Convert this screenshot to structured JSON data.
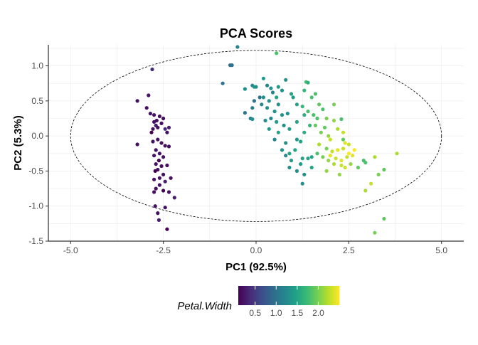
{
  "chart_data": {
    "type": "scatter",
    "title": "PCA Scores",
    "xlabel": "PC1 (92.5%)",
    "ylabel": "PC2 (5.3%)",
    "xlim": [
      -5.6,
      5.6
    ],
    "ylim": [
      -1.5,
      1.3
    ],
    "x_ticks": [
      -5.0,
      -2.5,
      0.0,
      2.5,
      5.0
    ],
    "x_tick_labels": [
      "-5.0",
      "-2.5",
      "0.0",
      "2.5",
      "5.0"
    ],
    "y_ticks": [
      -1.5,
      -1.0,
      -0.5,
      0.0,
      0.5,
      1.0
    ],
    "y_tick_labels": [
      "-1.5",
      "-1.0",
      "-0.5",
      "0.0",
      "0.5",
      "1.0"
    ],
    "grid": true,
    "legend_position": "bottom",
    "color_variable": "Petal.Width",
    "colorbar": {
      "title": "Petal.Width",
      "range": [
        0.1,
        2.5
      ],
      "ticks": [
        0.5,
        1.0,
        1.5,
        2.0
      ],
      "tick_labels": [
        "0.5",
        "1.0",
        "1.5",
        "2.0"
      ],
      "colors": [
        "#440154",
        "#482878",
        "#3e4a89",
        "#31688e",
        "#26828e",
        "#1f9e89",
        "#35b779",
        "#6ece58",
        "#b5de2b",
        "#fde725"
      ]
    },
    "ellipse": {
      "center": [
        0,
        0
      ],
      "semi_axis_x": 5.0,
      "semi_axis_y": 1.22
    },
    "points": [
      {
        "x": -3.2,
        "y": 0.5,
        "c": 0.2
      },
      {
        "x": -3.2,
        "y": -0.12,
        "c": 0.2
      },
      {
        "x": -2.95,
        "y": 0.4,
        "c": 0.2
      },
      {
        "x": -2.85,
        "y": 0.32,
        "c": 0.2
      },
      {
        "x": -2.9,
        "y": 0.58,
        "c": 0.2
      },
      {
        "x": -2.8,
        "y": 0.95,
        "c": 0.4
      },
      {
        "x": -2.75,
        "y": 0.3,
        "c": 0.2
      },
      {
        "x": -2.75,
        "y": 0.2,
        "c": 0.2
      },
      {
        "x": -2.78,
        "y": 0.1,
        "c": 0.2
      },
      {
        "x": -2.82,
        "y": 0.05,
        "c": 0.1
      },
      {
        "x": -2.68,
        "y": 0.22,
        "c": 0.2
      },
      {
        "x": -2.7,
        "y": 0.15,
        "c": 0.3
      },
      {
        "x": -2.65,
        "y": 0.12,
        "c": 0.2
      },
      {
        "x": -2.6,
        "y": 0.28,
        "c": 0.2
      },
      {
        "x": -2.55,
        "y": 0.18,
        "c": 0.2
      },
      {
        "x": -2.5,
        "y": 0.25,
        "c": 0.2
      },
      {
        "x": -2.45,
        "y": 0.1,
        "c": 0.4
      },
      {
        "x": -2.4,
        "y": 0.05,
        "c": 0.2
      },
      {
        "x": -2.35,
        "y": 0.12,
        "c": 0.3
      },
      {
        "x": -2.78,
        "y": -0.08,
        "c": 0.2
      },
      {
        "x": -2.65,
        "y": -0.05,
        "c": 0.2
      },
      {
        "x": -2.55,
        "y": -0.1,
        "c": 0.2
      },
      {
        "x": -2.45,
        "y": -0.14,
        "c": 0.2
      },
      {
        "x": -2.35,
        "y": -0.15,
        "c": 0.2
      },
      {
        "x": -2.7,
        "y": -0.2,
        "c": 0.2
      },
      {
        "x": -2.6,
        "y": -0.25,
        "c": 0.2
      },
      {
        "x": -2.75,
        "y": -0.28,
        "c": 0.2
      },
      {
        "x": -2.5,
        "y": -0.3,
        "c": 0.2
      },
      {
        "x": -2.62,
        "y": -0.35,
        "c": 0.1
      },
      {
        "x": -2.7,
        "y": -0.4,
        "c": 0.2
      },
      {
        "x": -2.55,
        "y": -0.43,
        "c": 0.2
      },
      {
        "x": -2.4,
        "y": -0.42,
        "c": 0.2
      },
      {
        "x": -2.65,
        "y": -0.48,
        "c": 0.2
      },
      {
        "x": -2.72,
        "y": -0.5,
        "c": 0.1
      },
      {
        "x": -2.5,
        "y": -0.55,
        "c": 0.2
      },
      {
        "x": -2.6,
        "y": -0.6,
        "c": 0.2
      },
      {
        "x": -2.75,
        "y": -0.62,
        "c": 0.2
      },
      {
        "x": -2.45,
        "y": -0.65,
        "c": 0.3
      },
      {
        "x": -2.3,
        "y": -0.6,
        "c": 0.2
      },
      {
        "x": -2.6,
        "y": -0.7,
        "c": 0.2
      },
      {
        "x": -2.7,
        "y": -0.75,
        "c": 0.2
      },
      {
        "x": -2.5,
        "y": -0.78,
        "c": 0.1
      },
      {
        "x": -2.35,
        "y": -0.8,
        "c": 0.2
      },
      {
        "x": -2.2,
        "y": -0.88,
        "c": 0.3
      },
      {
        "x": -2.75,
        "y": -0.8,
        "c": 0.2
      },
      {
        "x": -2.72,
        "y": -1.0,
        "c": 0.2
      },
      {
        "x": -2.45,
        "y": -1.02,
        "c": 0.2
      },
      {
        "x": -2.65,
        "y": -1.1,
        "c": 0.2
      },
      {
        "x": -2.62,
        "y": -1.2,
        "c": 0.3
      },
      {
        "x": -2.4,
        "y": -1.33,
        "c": 0.1
      },
      {
        "x": -0.5,
        "y": 1.27,
        "c": 1.2
      },
      {
        "x": -0.7,
        "y": 1.01,
        "c": 1.0
      },
      {
        "x": -0.65,
        "y": 1.01,
        "c": 1.0
      },
      {
        "x": -0.9,
        "y": 0.75,
        "c": 1.0
      },
      {
        "x": -0.3,
        "y": 0.67,
        "c": 1.3
      },
      {
        "x": -0.1,
        "y": 0.72,
        "c": 1.2
      },
      {
        "x": -0.05,
        "y": 0.7,
        "c": 1.4
      },
      {
        "x": 0.0,
        "y": 0.7,
        "c": 1.3
      },
      {
        "x": 0.1,
        "y": 0.55,
        "c": 1.0
      },
      {
        "x": 0.2,
        "y": 0.82,
        "c": 1.4
      },
      {
        "x": 0.3,
        "y": 0.72,
        "c": 1.2
      },
      {
        "x": 0.4,
        "y": 0.68,
        "c": 1.3
      },
      {
        "x": 0.45,
        "y": 0.62,
        "c": 1.2
      },
      {
        "x": 0.55,
        "y": 0.55,
        "c": 1.5
      },
      {
        "x": 0.6,
        "y": 0.7,
        "c": 1.4
      },
      {
        "x": 0.7,
        "y": 0.65,
        "c": 1.3
      },
      {
        "x": 0.8,
        "y": 0.8,
        "c": 1.3
      },
      {
        "x": 0.95,
        "y": 0.6,
        "c": 1.5
      },
      {
        "x": 1.0,
        "y": 0.55,
        "c": 1.4
      },
      {
        "x": 1.1,
        "y": 0.45,
        "c": 1.5
      },
      {
        "x": 0.3,
        "y": 0.4,
        "c": 1.3
      },
      {
        "x": 0.5,
        "y": 0.35,
        "c": 1.3
      },
      {
        "x": 0.6,
        "y": 0.45,
        "c": 1.3
      },
      {
        "x": -0.05,
        "y": 0.5,
        "c": 1.0
      },
      {
        "x": 0.2,
        "y": 0.55,
        "c": 1.3
      },
      {
        "x": 0.35,
        "y": 0.5,
        "c": 1.3
      },
      {
        "x": 0.15,
        "y": 0.45,
        "c": 1.2
      },
      {
        "x": -0.1,
        "y": 0.4,
        "c": 1.1
      },
      {
        "x": -0.3,
        "y": 0.33,
        "c": 1.0
      },
      {
        "x": -0.15,
        "y": 0.25,
        "c": 1.1
      },
      {
        "x": 0.25,
        "y": 0.22,
        "c": 1.3
      },
      {
        "x": 0.4,
        "y": 0.25,
        "c": 1.2
      },
      {
        "x": 0.55,
        "y": 0.2,
        "c": 1.4
      },
      {
        "x": 0.7,
        "y": 0.3,
        "c": 1.3
      },
      {
        "x": 0.85,
        "y": 0.32,
        "c": 1.3
      },
      {
        "x": -0.1,
        "y": 0.24,
        "c": 1.3
      },
      {
        "x": 0.35,
        "y": 0.1,
        "c": 1.4
      },
      {
        "x": 0.6,
        "y": 0.05,
        "c": 1.5
      },
      {
        "x": 0.75,
        "y": 0.15,
        "c": 1.3
      },
      {
        "x": 0.9,
        "y": 0.1,
        "c": 1.4
      },
      {
        "x": 1.1,
        "y": 0.2,
        "c": 1.5
      },
      {
        "x": 1.3,
        "y": 0.05,
        "c": 1.6
      },
      {
        "x": 0.5,
        "y": -0.05,
        "c": 1.2
      },
      {
        "x": 0.8,
        "y": -0.1,
        "c": 1.3
      },
      {
        "x": 0.7,
        "y": -0.2,
        "c": 1.3
      },
      {
        "x": 0.9,
        "y": -0.25,
        "c": 1.5
      },
      {
        "x": 1.1,
        "y": -0.05,
        "c": 1.4
      },
      {
        "x": 1.05,
        "y": -0.2,
        "c": 1.5
      },
      {
        "x": 1.2,
        "y": -0.08,
        "c": 1.5
      },
      {
        "x": 0.9,
        "y": -0.45,
        "c": 1.3
      },
      {
        "x": 1.1,
        "y": -0.5,
        "c": 1.3
      },
      {
        "x": 1.25,
        "y": -0.32,
        "c": 1.5
      },
      {
        "x": 1.5,
        "y": -0.3,
        "c": 1.5
      },
      {
        "x": 1.3,
        "y": -0.55,
        "c": 1.3
      },
      {
        "x": 1.25,
        "y": -0.68,
        "c": 1.3
      },
      {
        "x": 0.95,
        "y": -0.35,
        "c": 1.4
      },
      {
        "x": 1.2,
        "y": -0.4,
        "c": 1.4
      },
      {
        "x": 1.5,
        "y": -0.45,
        "c": 1.5
      },
      {
        "x": 1.4,
        "y": -0.32,
        "c": 1.5
      },
      {
        "x": 0.8,
        "y": -0.28,
        "c": 1.2
      },
      {
        "x": 0.55,
        "y": 1.18,
        "c": 1.8
      },
      {
        "x": 1.3,
        "y": 0.65,
        "c": 1.7
      },
      {
        "x": 1.35,
        "y": 0.77,
        "c": 1.8
      },
      {
        "x": 1.4,
        "y": 0.76,
        "c": 1.6
      },
      {
        "x": 1.5,
        "y": 0.55,
        "c": 1.8
      },
      {
        "x": 1.7,
        "y": 0.45,
        "c": 1.9
      },
      {
        "x": 1.6,
        "y": 0.6,
        "c": 1.8
      },
      {
        "x": 1.25,
        "y": 0.42,
        "c": 1.7
      },
      {
        "x": 1.4,
        "y": 0.35,
        "c": 1.8
      },
      {
        "x": 1.55,
        "y": 0.3,
        "c": 1.8
      },
      {
        "x": 1.3,
        "y": 0.3,
        "c": 1.6
      },
      {
        "x": 1.45,
        "y": 0.15,
        "c": 1.7
      },
      {
        "x": 1.65,
        "y": 0.25,
        "c": 1.8
      },
      {
        "x": 1.6,
        "y": 0.15,
        "c": 1.9
      },
      {
        "x": 1.8,
        "y": 0.38,
        "c": 1.8
      },
      {
        "x": 1.9,
        "y": 0.25,
        "c": 2.0
      },
      {
        "x": 2.1,
        "y": 0.22,
        "c": 2.1
      },
      {
        "x": 2.3,
        "y": 0.24,
        "c": 1.8
      },
      {
        "x": 2.1,
        "y": 0.45,
        "c": 2.0
      },
      {
        "x": 1.75,
        "y": 0.05,
        "c": 2.0
      },
      {
        "x": 1.95,
        "y": 0.0,
        "c": 2.1
      },
      {
        "x": 2.0,
        "y": -0.05,
        "c": 2.3
      },
      {
        "x": 2.2,
        "y": 0.1,
        "c": 2.2
      },
      {
        "x": 2.35,
        "y": 0.05,
        "c": 2.3
      },
      {
        "x": 2.4,
        "y": -0.1,
        "c": 2.4
      },
      {
        "x": 1.7,
        "y": -0.12,
        "c": 2.2
      },
      {
        "x": 1.9,
        "y": -0.18,
        "c": 2.0
      },
      {
        "x": 2.05,
        "y": -0.22,
        "c": 2.3
      },
      {
        "x": 2.2,
        "y": -0.2,
        "c": 2.4
      },
      {
        "x": 2.35,
        "y": -0.18,
        "c": 2.3
      },
      {
        "x": 2.5,
        "y": -0.25,
        "c": 2.5
      },
      {
        "x": 1.8,
        "y": -0.3,
        "c": 2.0
      },
      {
        "x": 1.95,
        "y": -0.35,
        "c": 2.1
      },
      {
        "x": 2.15,
        "y": -0.32,
        "c": 2.3
      },
      {
        "x": 2.3,
        "y": -0.35,
        "c": 2.4
      },
      {
        "x": 2.45,
        "y": -0.3,
        "c": 2.3
      },
      {
        "x": 2.6,
        "y": -0.28,
        "c": 2.4
      },
      {
        "x": 1.9,
        "y": -0.5,
        "c": 2.1
      },
      {
        "x": 2.1,
        "y": -0.4,
        "c": 2.2
      },
      {
        "x": 2.3,
        "y": -0.42,
        "c": 2.3
      },
      {
        "x": 2.4,
        "y": -0.45,
        "c": 2.3
      },
      {
        "x": 2.55,
        "y": -0.4,
        "c": 2.1
      },
      {
        "x": 2.75,
        "y": -0.45,
        "c": 1.9
      },
      {
        "x": 2.9,
        "y": -0.35,
        "c": 1.8
      },
      {
        "x": 2.95,
        "y": -0.38,
        "c": 1.8
      },
      {
        "x": 3.2,
        "y": -0.3,
        "c": 2.2
      },
      {
        "x": 3.3,
        "y": -0.55,
        "c": 2.0
      },
      {
        "x": 3.45,
        "y": -0.48,
        "c": 1.9
      },
      {
        "x": 3.8,
        "y": -0.25,
        "c": 2.2
      },
      {
        "x": 3.1,
        "y": -0.68,
        "c": 2.3
      },
      {
        "x": 2.95,
        "y": -0.78,
        "c": 2.2
      },
      {
        "x": 3.45,
        "y": -1.18,
        "c": 1.9
      },
      {
        "x": 3.2,
        "y": -1.38,
        "c": 2.0
      },
      {
        "x": 2.35,
        "y": -0.05,
        "c": 1.9
      },
      {
        "x": 1.85,
        "y": 0.12,
        "c": 1.9
      },
      {
        "x": 1.65,
        "y": -0.25,
        "c": 1.8
      },
      {
        "x": 2.0,
        "y": -0.28,
        "c": 2.4
      },
      {
        "x": 2.25,
        "y": -0.55,
        "c": 2.1
      },
      {
        "x": 2.5,
        "y": -0.12,
        "c": 2.3
      },
      {
        "x": 2.65,
        "y": -0.2,
        "c": 2.5
      }
    ]
  }
}
